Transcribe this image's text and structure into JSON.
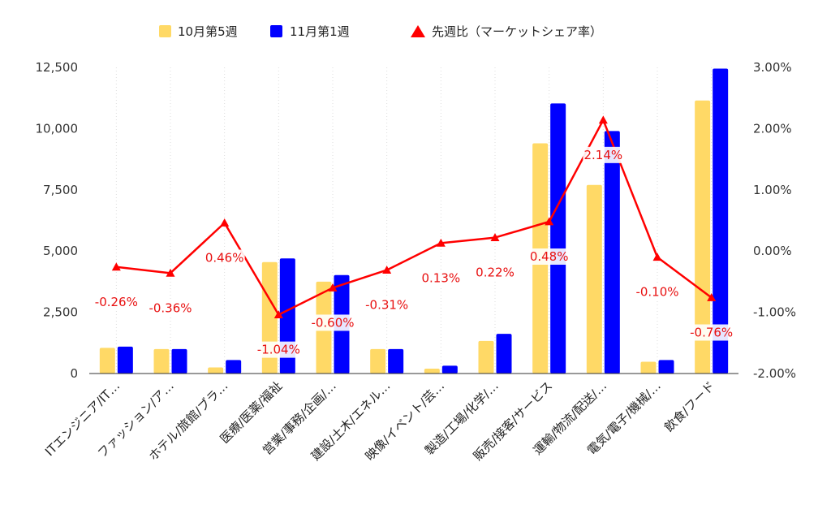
{
  "chart_data": {
    "type": "bar+line",
    "title": "",
    "xlabel": "",
    "ylabel": "",
    "categories": [
      "ITエンジニア/IT…",
      "ファッション/ア…",
      "ホテル/旅館/ブラ…",
      "医療/医薬/福祉",
      "営業/事務/企画/…",
      "建設/土木/エネル…",
      "映像/イベント/芸…",
      "製造/工場/化学/…",
      "販売/接客/サービス",
      "運輸/物流/配送/…",
      "電気/電子/機械/…",
      "飲食/フード"
    ],
    "series": [
      {
        "name": "10月第5週",
        "type": "bar",
        "axis": "left",
        "color": "#ffd966",
        "values": [
          1050,
          1000,
          250,
          4550,
          3750,
          1000,
          200,
          1330,
          9400,
          7700,
          480,
          11150
        ]
      },
      {
        "name": "11月第1週",
        "type": "bar",
        "axis": "left",
        "color": "#0000ff",
        "values": [
          1100,
          1000,
          550,
          4700,
          4020,
          1000,
          320,
          1620,
          11030,
          9900,
          550,
          12450
        ]
      },
      {
        "name": "先週比（マーケットシェア率）",
        "type": "line",
        "axis": "right",
        "color": "#ff0000",
        "values": [
          -0.26,
          -0.36,
          0.46,
          -1.04,
          -0.6,
          -0.31,
          0.13,
          0.22,
          0.48,
          2.14,
          -0.1,
          -0.76
        ],
        "labels": [
          "-0.26%",
          "-0.36%",
          "0.46%",
          "-1.04%",
          "-0.60%",
          "-0.31%",
          "0.13%",
          "0.22%",
          "0.48%",
          "2.14%",
          "-0.10%",
          "-0.76%"
        ]
      }
    ],
    "y_left": {
      "min": 0,
      "max": 12500,
      "ticks": [
        0,
        2500,
        5000,
        7500,
        10000,
        12500
      ],
      "tick_labels": [
        "0",
        "2,500",
        "5,000",
        "7,500",
        "10,000",
        "12,500"
      ]
    },
    "y_right": {
      "min": -2,
      "max": 3,
      "ticks": [
        -2,
        -1,
        0,
        1,
        2,
        3
      ],
      "tick_labels": [
        "-2.00%",
        "-1.00%",
        "0.00%",
        "1.00%",
        "2.00%",
        "3.00%"
      ]
    },
    "grid": "vertical-dotted",
    "legend": "top-center"
  }
}
